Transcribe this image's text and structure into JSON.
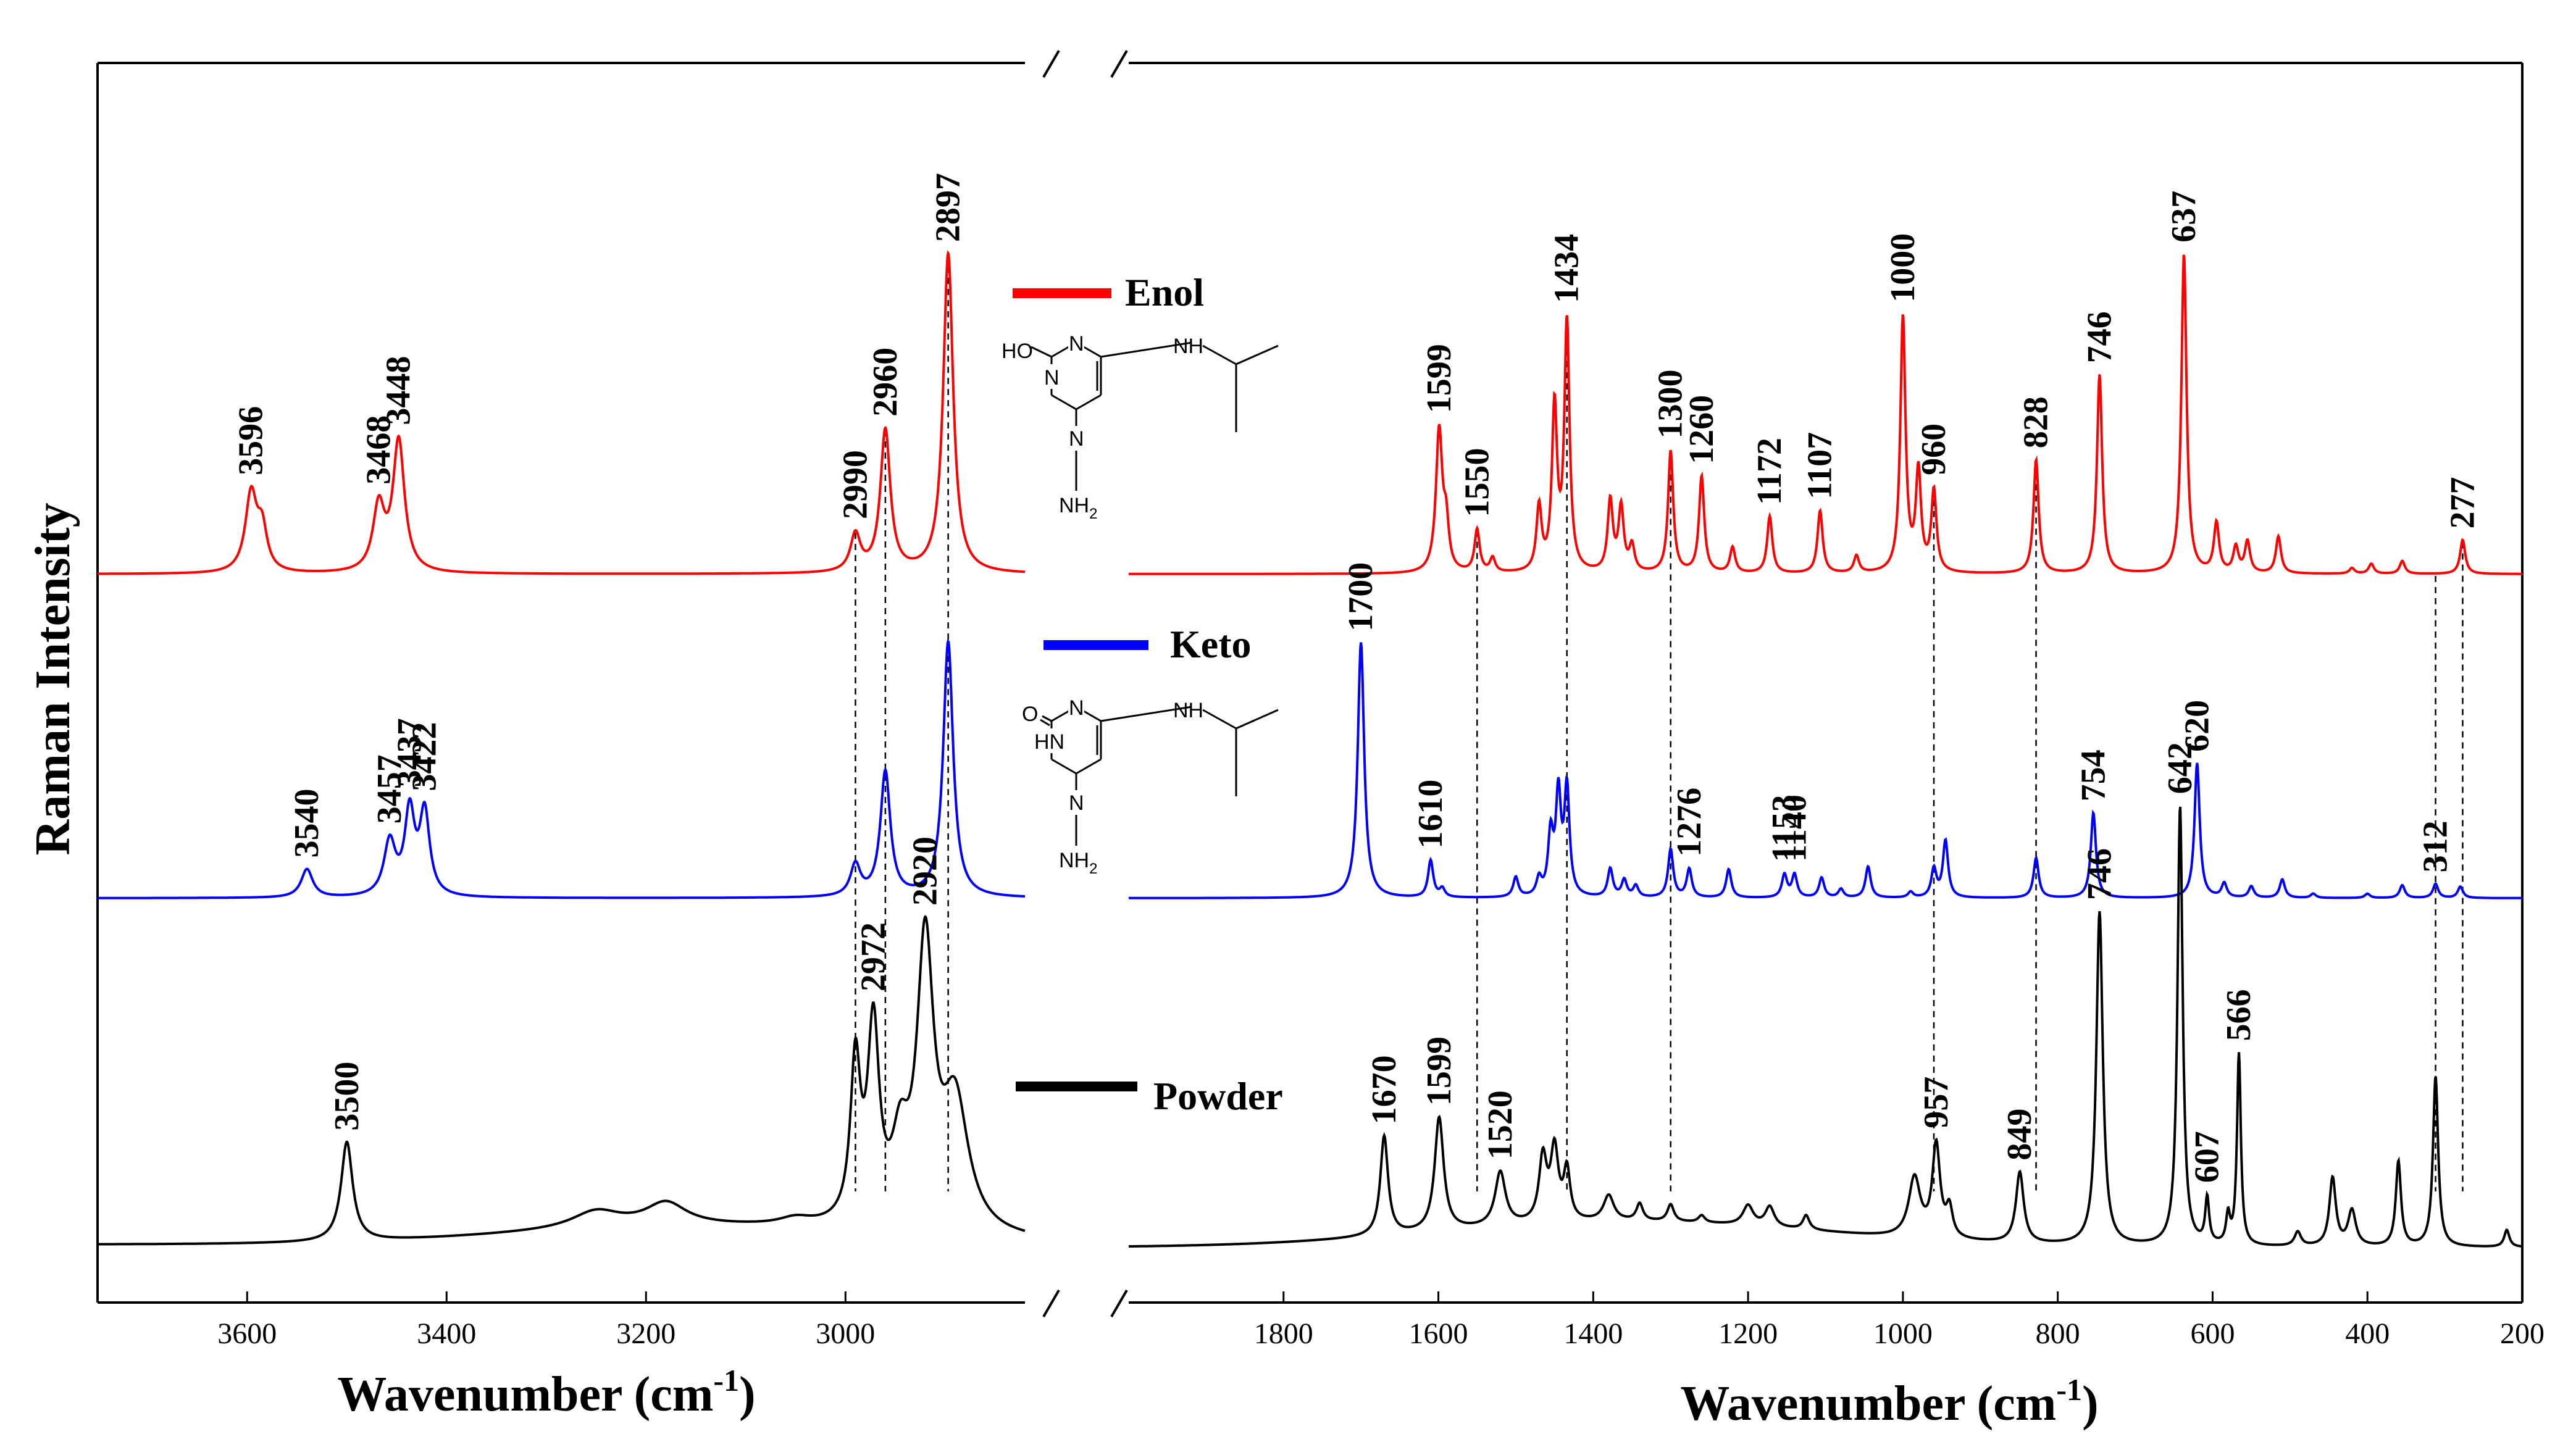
{
  "chart_data": {
    "type": "line",
    "ylabel": "Raman Intensity",
    "xlabel_main": "Wavenumber",
    "xlabel_unit": "(cm",
    "xlabel_exp": "-1",
    "xlabel_close": ")",
    "x_axis_reversed": true,
    "axis_break": true,
    "panels": [
      {
        "name": "high-wavenumber",
        "xlim": [
          3750,
          2820
        ],
        "ticks": [
          "3600",
          "3400",
          "3200",
          "3000"
        ]
      },
      {
        "name": "low-wavenumber",
        "xlim": [
          2000,
          200
        ],
        "ticks": [
          "1800",
          "1600",
          "1400",
          "1200",
          "1000",
          "800",
          "600",
          "400",
          "200"
        ]
      }
    ],
    "legend": [
      {
        "name": "Enol",
        "color": "#ff0000"
      },
      {
        "name": "Keto",
        "color": "#0000ff"
      },
      {
        "name": "Powder",
        "color": "#000000"
      }
    ],
    "structures": {
      "enol": {
        "label_oh": "HO",
        "label_nh": "NH",
        "label_nh2": "NH",
        "label_n": "N"
      },
      "keto": {
        "label_o": "O",
        "label_hn": "HN",
        "label_nh": "NH",
        "label_nh2": "NH",
        "label_n": "N"
      }
    },
    "series": [
      {
        "name": "Enol",
        "color": "#ff0000",
        "peaks": [
          {
            "x": 3596,
            "h": 0.55,
            "w": 7,
            "label": "3596"
          },
          {
            "x": 3585,
            "h": 0.28,
            "w": 6
          },
          {
            "x": 3468,
            "h": 0.45,
            "w": 7,
            "label": "3468"
          },
          {
            "x": 3448,
            "h": 0.92,
            "w": 7,
            "label": "3448"
          },
          {
            "x": 2990,
            "h": 0.26,
            "w": 6,
            "label": "2990"
          },
          {
            "x": 2960,
            "h": 1.0,
            "w": 6,
            "label": "2960"
          },
          {
            "x": 2897,
            "h": 2.25,
            "w": 6,
            "label": "2897"
          },
          {
            "x": 1700,
            "h": 0.0,
            "w": 4
          },
          {
            "x": 1599,
            "h": 1.0,
            "w": 5,
            "label": "1599"
          },
          {
            "x": 1590,
            "h": 0.3,
            "w": 4
          },
          {
            "x": 1550,
            "h": 0.3,
            "w": 4,
            "label": "1550"
          },
          {
            "x": 1530,
            "h": 0.1,
            "w": 4
          },
          {
            "x": 1470,
            "h": 0.45,
            "w": 4
          },
          {
            "x": 1450,
            "h": 1.15,
            "w": 4
          },
          {
            "x": 1434,
            "h": 1.75,
            "w": 4,
            "label": "1434"
          },
          {
            "x": 1378,
            "h": 0.5,
            "w": 4
          },
          {
            "x": 1364,
            "h": 0.45,
            "w": 4
          },
          {
            "x": 1350,
            "h": 0.18,
            "w": 4
          },
          {
            "x": 1300,
            "h": 0.86,
            "w": 4,
            "label": "1300"
          },
          {
            "x": 1260,
            "h": 0.68,
            "w": 4,
            "label": "1260"
          },
          {
            "x": 1220,
            "h": 0.18,
            "w": 4
          },
          {
            "x": 1172,
            "h": 0.4,
            "w": 4,
            "label": "1172"
          },
          {
            "x": 1107,
            "h": 0.44,
            "w": 4,
            "label": "1107"
          },
          {
            "x": 1060,
            "h": 0.12,
            "w": 4
          },
          {
            "x": 1000,
            "h": 1.8,
            "w": 4,
            "label": "1000"
          },
          {
            "x": 980,
            "h": 0.7,
            "w": 4
          },
          {
            "x": 960,
            "h": 0.57,
            "w": 4,
            "label": "960"
          },
          {
            "x": 828,
            "h": 0.8,
            "w": 4,
            "label": "828"
          },
          {
            "x": 746,
            "h": 1.4,
            "w": 4,
            "label": "746"
          },
          {
            "x": 637,
            "h": 2.25,
            "w": 4,
            "label": "637"
          },
          {
            "x": 595,
            "h": 0.35,
            "w": 4
          },
          {
            "x": 570,
            "h": 0.18,
            "w": 4
          },
          {
            "x": 555,
            "h": 0.22,
            "w": 4
          },
          {
            "x": 515,
            "h": 0.26,
            "w": 4
          },
          {
            "x": 420,
            "h": 0.04,
            "w": 4
          },
          {
            "x": 395,
            "h": 0.07,
            "w": 4
          },
          {
            "x": 355,
            "h": 0.09,
            "w": 4
          },
          {
            "x": 277,
            "h": 0.24,
            "w": 4,
            "label": "277"
          }
        ]
      },
      {
        "name": "Keto",
        "color": "#0000ff",
        "peaks": [
          {
            "x": 3540,
            "h": 0.2,
            "w": 7,
            "label": "3540"
          },
          {
            "x": 3457,
            "h": 0.38,
            "w": 7,
            "label": "3457"
          },
          {
            "x": 3437,
            "h": 0.58,
            "w": 6,
            "label": "3437"
          },
          {
            "x": 3422,
            "h": 0.58,
            "w": 6,
            "label": "3422"
          },
          {
            "x": 2990,
            "h": 0.22,
            "w": 6
          },
          {
            "x": 2960,
            "h": 0.88,
            "w": 6
          },
          {
            "x": 2897,
            "h": 1.8,
            "w": 6
          },
          {
            "x": 1700,
            "h": 1.8,
            "w": 5,
            "label": "1700"
          },
          {
            "x": 1610,
            "h": 0.26,
            "w": 4,
            "label": "1610"
          },
          {
            "x": 1595,
            "h": 0.06,
            "w": 4
          },
          {
            "x": 1500,
            "h": 0.14,
            "w": 4
          },
          {
            "x": 1470,
            "h": 0.12,
            "w": 4
          },
          {
            "x": 1455,
            "h": 0.42,
            "w": 4
          },
          {
            "x": 1445,
            "h": 0.7,
            "w": 4
          },
          {
            "x": 1434,
            "h": 0.75,
            "w": 4
          },
          {
            "x": 1378,
            "h": 0.2,
            "w": 4
          },
          {
            "x": 1360,
            "h": 0.12,
            "w": 4
          },
          {
            "x": 1345,
            "h": 0.08,
            "w": 4
          },
          {
            "x": 1300,
            "h": 0.34,
            "w": 4
          },
          {
            "x": 1276,
            "h": 0.2,
            "w": 4,
            "label": "1276"
          },
          {
            "x": 1225,
            "h": 0.2,
            "w": 4
          },
          {
            "x": 1153,
            "h": 0.16,
            "w": 4,
            "label": "1153"
          },
          {
            "x": 1140,
            "h": 0.16,
            "w": 4,
            "label": "1140"
          },
          {
            "x": 1105,
            "h": 0.14,
            "w": 4
          },
          {
            "x": 1080,
            "h": 0.06,
            "w": 4
          },
          {
            "x": 1045,
            "h": 0.22,
            "w": 4
          },
          {
            "x": 990,
            "h": 0.04,
            "w": 4
          },
          {
            "x": 960,
            "h": 0.2,
            "w": 4
          },
          {
            "x": 945,
            "h": 0.4,
            "w": 4
          },
          {
            "x": 828,
            "h": 0.28,
            "w": 4
          },
          {
            "x": 754,
            "h": 0.6,
            "w": 4,
            "label": "754"
          },
          {
            "x": 620,
            "h": 0.95,
            "w": 4,
            "label": "620"
          },
          {
            "x": 585,
            "h": 0.1,
            "w": 4
          },
          {
            "x": 550,
            "h": 0.08,
            "w": 4
          },
          {
            "x": 510,
            "h": 0.13,
            "w": 4
          },
          {
            "x": 470,
            "h": 0.03,
            "w": 4
          },
          {
            "x": 400,
            "h": 0.03,
            "w": 4
          },
          {
            "x": 355,
            "h": 0.09,
            "w": 4
          },
          {
            "x": 312,
            "h": 0.1,
            "w": 4,
            "label": "312"
          },
          {
            "x": 280,
            "h": 0.08,
            "w": 4
          }
        ]
      },
      {
        "name": "Powder",
        "color": "#000000",
        "peaks": [
          {
            "x": 3500,
            "h": 0.7,
            "w": 7,
            "label": "3500"
          },
          {
            "x": 3250,
            "h": 0.12,
            "w": 30
          },
          {
            "x": 3180,
            "h": 0.16,
            "w": 25
          },
          {
            "x": 3050,
            "h": 0.05,
            "w": 20
          },
          {
            "x": 2990,
            "h": 1.1,
            "w": 6
          },
          {
            "x": 2972,
            "h": 1.35,
            "w": 7,
            "label": "2972"
          },
          {
            "x": 2945,
            "h": 0.5,
            "w": 10
          },
          {
            "x": 2920,
            "h": 1.95,
            "w": 10,
            "label": "2920"
          },
          {
            "x": 2890,
            "h": 0.9,
            "w": 16
          },
          {
            "x": 1670,
            "h": 0.7,
            "w": 6,
            "label": "1670"
          },
          {
            "x": 1599,
            "h": 0.8,
            "w": 7,
            "label": "1599"
          },
          {
            "x": 1520,
            "h": 0.38,
            "w": 8,
            "label": "1520"
          },
          {
            "x": 1465,
            "h": 0.45,
            "w": 6
          },
          {
            "x": 1450,
            "h": 0.5,
            "w": 6
          },
          {
            "x": 1434,
            "h": 0.35,
            "w": 5
          },
          {
            "x": 1380,
            "h": 0.18,
            "w": 8
          },
          {
            "x": 1340,
            "h": 0.12,
            "w": 5
          },
          {
            "x": 1300,
            "h": 0.12,
            "w": 5
          },
          {
            "x": 1260,
            "h": 0.05,
            "w": 5
          },
          {
            "x": 1200,
            "h": 0.14,
            "w": 8
          },
          {
            "x": 1172,
            "h": 0.14,
            "w": 7
          },
          {
            "x": 1125,
            "h": 0.1,
            "w": 5
          },
          {
            "x": 985,
            "h": 0.42,
            "w": 9
          },
          {
            "x": 957,
            "h": 0.65,
            "w": 6,
            "label": "957"
          },
          {
            "x": 940,
            "h": 0.2,
            "w": 5
          },
          {
            "x": 849,
            "h": 0.5,
            "w": 6,
            "label": "849"
          },
          {
            "x": 746,
            "h": 2.35,
            "w": 5,
            "label": "746"
          },
          {
            "x": 642,
            "h": 3.1,
            "w": 4,
            "label": "642"
          },
          {
            "x": 607,
            "h": 0.32,
            "w": 3,
            "label": "607"
          },
          {
            "x": 580,
            "h": 0.2,
            "w": 3
          },
          {
            "x": 566,
            "h": 1.35,
            "w": 3,
            "label": "566"
          },
          {
            "x": 490,
            "h": 0.1,
            "w": 5
          },
          {
            "x": 445,
            "h": 0.48,
            "w": 5
          },
          {
            "x": 420,
            "h": 0.25,
            "w": 6
          },
          {
            "x": 360,
            "h": 0.6,
            "w": 4
          },
          {
            "x": 312,
            "h": 1.2,
            "w": 4
          },
          {
            "x": 220,
            "h": 0.12,
            "w": 4
          }
        ]
      }
    ],
    "reference_lines": [
      2990,
      2960,
      2897,
      1550,
      1434,
      1300,
      960,
      828,
      312,
      277
    ]
  }
}
